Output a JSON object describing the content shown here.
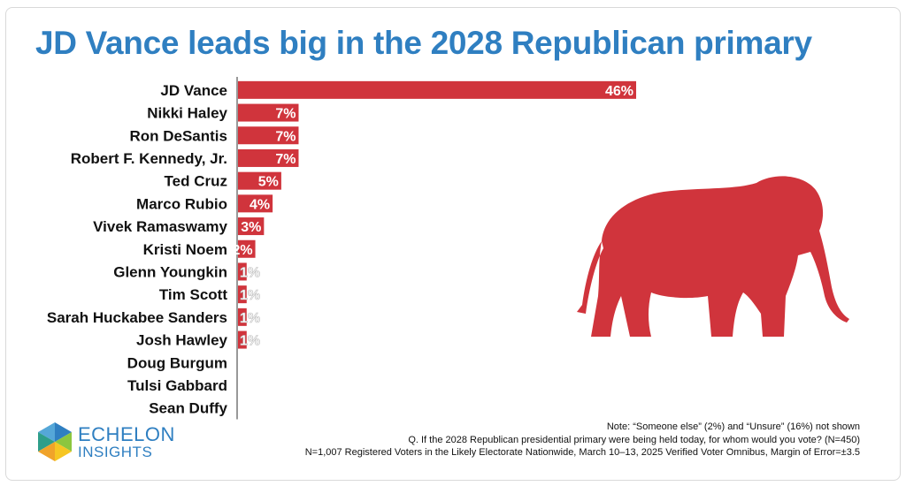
{
  "chart_data": {
    "type": "bar",
    "orientation": "horizontal",
    "title": "JD Vance leads big in the 2028 Republican primary",
    "categories": [
      "JD Vance",
      "Nikki Haley",
      "Ron DeSantis",
      "Robert F. Kennedy, Jr.",
      "Ted Cruz",
      "Marco Rubio",
      "Vivek Ramaswamy",
      "Kristi Noem",
      "Glenn Youngkin",
      "Tim Scott",
      "Sarah Huckabee Sanders",
      "Josh Hawley",
      "Doug Burgum",
      "Tulsi Gabbard",
      "Sean Duffy"
    ],
    "values": [
      46,
      7,
      7,
      7,
      5,
      4,
      3,
      2,
      1,
      1,
      1,
      1,
      0,
      0,
      0
    ],
    "value_labels": [
      "46%",
      "7%",
      "7%",
      "7%",
      "5%",
      "4%",
      "3%",
      "2%",
      "1%",
      "1%",
      "1%",
      "1%",
      "",
      "",
      ""
    ],
    "bar_color": "#d0343c",
    "xlim": [
      0,
      46
    ],
    "grid": false,
    "legend": "none"
  },
  "notes": [
    "Note: “Someone else” (2%) and “Unsure” (16%) not shown",
    "Q. If the 2028 Republican presidential primary were being held today, for whom would you vote? (N=450)",
    "N=1,007 Registered Voters in the Likely Electorate Nationwide, March 10–13, 2025 Verified Voter Omnibus, Margin of Error=±3.5"
  ],
  "logo": {
    "name": "ECHELON",
    "sub": "INSIGHTS"
  },
  "colors": {
    "title": "#2f7fc1",
    "bar": "#d0343c",
    "elephant": "#d0343c",
    "brand": "#2f7fc1"
  },
  "icons": {
    "party_symbol": "elephant-icon",
    "brand_mark": "hexagon-logo-icon"
  }
}
